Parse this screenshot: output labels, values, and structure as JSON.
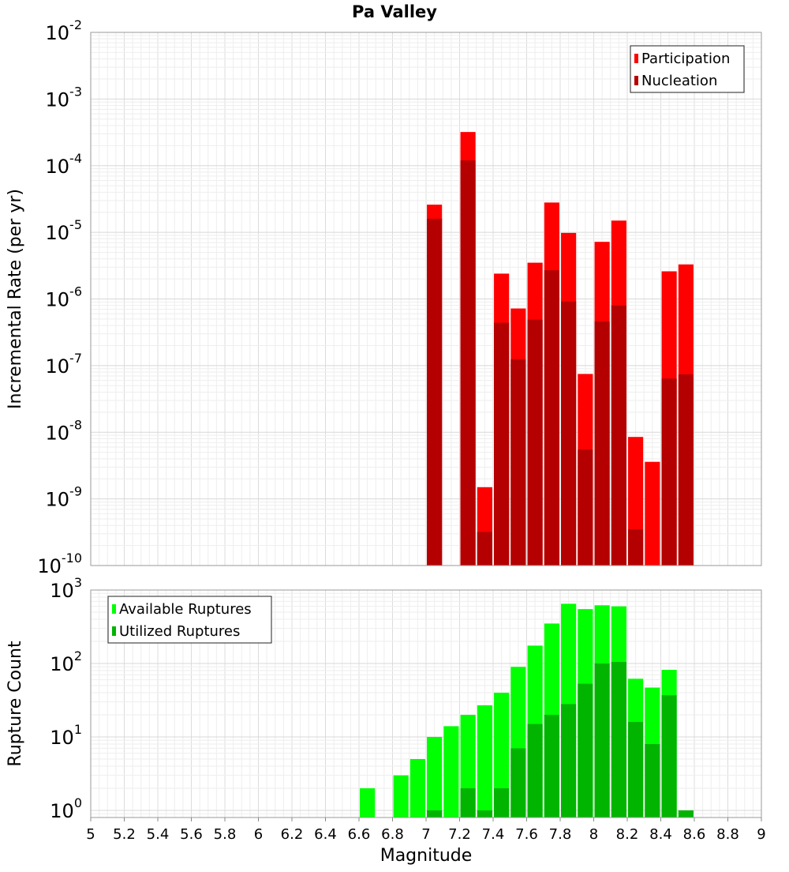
{
  "chart_data": [
    {
      "type": "bar",
      "title": "Pa Valley",
      "ylabel": "Incremental Rate (per yr)",
      "yscale": "log",
      "ylim": [
        1e-10,
        0.01
      ],
      "xlim": [
        5,
        9
      ],
      "grid": true,
      "legend_position": "top-right",
      "bar_width": 0.09,
      "y_ticks": [
        {
          "base": "10",
          "exp": "-10"
        },
        {
          "base": "10",
          "exp": "-9"
        },
        {
          "base": "10",
          "exp": "-8"
        },
        {
          "base": "10",
          "exp": "-7"
        },
        {
          "base": "10",
          "exp": "-6"
        },
        {
          "base": "10",
          "exp": "-5"
        },
        {
          "base": "10",
          "exp": "-4"
        },
        {
          "base": "10",
          "exp": "-3"
        },
        {
          "base": "10",
          "exp": "-2"
        }
      ],
      "series": [
        {
          "name": "Participation",
          "color": "#ff0000",
          "x": [
            7.05,
            7.25,
            7.35,
            7.45,
            7.55,
            7.65,
            7.75,
            7.85,
            7.95,
            8.05,
            8.15,
            8.25,
            8.35,
            8.45,
            8.55
          ],
          "values": [
            2.6e-05,
            0.00032,
            1.5e-09,
            2.4e-06,
            7.2e-07,
            3.5e-06,
            2.8e-05,
            9.8e-06,
            7.5e-08,
            7.2e-06,
            1.5e-05,
            8.5e-09,
            3.6e-09,
            2.6e-06,
            3.3e-06
          ]
        },
        {
          "name": "Nucleation",
          "color": "#b40000",
          "x": [
            7.05,
            7.25,
            7.35,
            7.45,
            7.55,
            7.65,
            7.75,
            7.85,
            7.95,
            8.05,
            8.15,
            8.25,
            8.35,
            8.45,
            8.55
          ],
          "values": [
            1.6e-05,
            0.00012,
            3.2e-10,
            4.4e-07,
            1.25e-07,
            4.9e-07,
            2.7e-06,
            9.2e-07,
            5.5e-09,
            4.6e-07,
            8e-07,
            3.5e-10,
            null,
            6.4e-08,
            7.4e-08
          ]
        }
      ]
    },
    {
      "type": "bar",
      "ylabel": "Rupture Count",
      "xlabel": "Magnitude",
      "yscale": "log",
      "ylim": [
        0.8,
        1000
      ],
      "xlim": [
        5,
        9
      ],
      "grid": true,
      "legend_position": "top-left",
      "bar_width": 0.09,
      "y_ticks": [
        {
          "base": "10",
          "exp": "0"
        },
        {
          "base": "10",
          "exp": "1"
        },
        {
          "base": "10",
          "exp": "2"
        },
        {
          "base": "10",
          "exp": "3"
        }
      ],
      "x_ticks": [
        "5",
        "5.2",
        "5.4",
        "5.6",
        "5.8",
        "6",
        "6.2",
        "6.4",
        "6.6",
        "6.8",
        "7",
        "7.2",
        "7.4",
        "7.6",
        "7.8",
        "8",
        "8.2",
        "8.4",
        "8.6",
        "8.8",
        "9"
      ],
      "series": [
        {
          "name": "Available Ruptures",
          "color": "#00ff00",
          "x": [
            6.65,
            6.85,
            6.95,
            7.05,
            7.15,
            7.25,
            7.35,
            7.45,
            7.55,
            7.65,
            7.75,
            7.85,
            7.95,
            8.05,
            8.15,
            8.25,
            8.35,
            8.45
          ],
          "values": [
            2,
            3,
            5,
            10,
            14,
            20,
            27,
            40,
            90,
            175,
            350,
            650,
            550,
            620,
            600,
            62,
            47,
            82
          ]
        },
        {
          "name": "Utilized Ruptures",
          "color": "#00b400",
          "x": [
            7.05,
            7.25,
            7.35,
            7.45,
            7.55,
            7.65,
            7.75,
            7.85,
            7.95,
            8.05,
            8.15,
            8.25,
            8.35,
            8.45,
            8.55
          ],
          "values": [
            1,
            2,
            1,
            2,
            7,
            15,
            20,
            28,
            53,
            100,
            105,
            16,
            8,
            37,
            1
          ]
        }
      ]
    }
  ]
}
